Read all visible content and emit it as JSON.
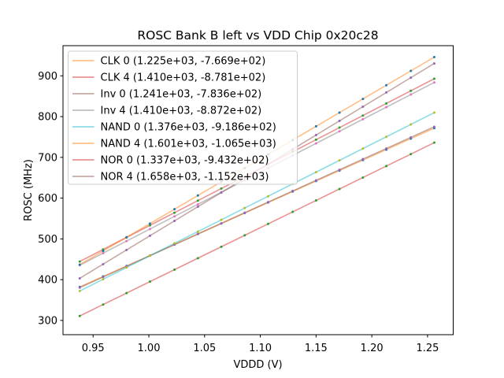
{
  "chart_data": {
    "type": "line",
    "title": "ROSC Bank B left vs VDD Chip 0x20c28",
    "xlabel": "VDDD (V)",
    "ylabel": "ROSC (MHz)",
    "xlim": [
      0.923,
      1.273
    ],
    "ylim": [
      265,
      974
    ],
    "grid": false,
    "x_ticks": {
      "values": [
        0.95,
        1.0,
        1.05,
        1.1,
        1.15,
        1.2,
        1.25
      ],
      "labels": [
        "0.95",
        "1.00",
        "1.05",
        "1.10",
        "1.15",
        "1.20",
        "1.25"
      ]
    },
    "y_ticks": {
      "values": [
        300,
        400,
        500,
        600,
        700,
        800,
        900
      ],
      "labels": [
        "300",
        "400",
        "500",
        "600",
        "700",
        "800",
        "900"
      ]
    },
    "legend": {
      "position": "upper left",
      "border_color": "#cccccc",
      "background": "rgba(255,255,255,0.8)"
    },
    "x": [
      0.938,
      0.959,
      0.98,
      1.001,
      1.023,
      1.044,
      1.065,
      1.086,
      1.107,
      1.129,
      1.15,
      1.171,
      1.192,
      1.213,
      1.235,
      1.256
    ],
    "series": [
      {
        "name": "CLK 0",
        "label": "CLK 0 (1.225e+03, -7.669e+02)",
        "fit_slope": 1225.0,
        "fit_intercept": -766.9,
        "line_color": "#ff7f0e",
        "line_alpha": 0.5,
        "marker_color": "#1f77b4",
        "values": [
          382.2,
          407.9,
          433.6,
          459.3,
          486.3,
          512.0,
          537.7,
          563.5,
          589.2,
          616.1,
          641.9,
          667.6,
          693.3,
          719.0,
          746.0,
          771.7
        ]
      },
      {
        "name": "CLK 4",
        "label": "CLK 4 (1.410e+03, -8.781e+02)",
        "fit_slope": 1410.0,
        "fit_intercept": -878.1,
        "line_color": "#d62728",
        "line_alpha": 0.5,
        "marker_color": "#2ca02c",
        "values": [
          444.5,
          474.1,
          503.7,
          533.3,
          564.3,
          593.9,
          623.6,
          653.2,
          682.8,
          713.8,
          743.4,
          773.0,
          802.6,
          832.2,
          863.3,
          892.9
        ]
      },
      {
        "name": "Inv 0",
        "label": "Inv 0 (1.241e+03, -7.836e+02)",
        "fit_slope": 1241.0,
        "fit_intercept": -783.6,
        "line_color": "#8c564b",
        "line_alpha": 0.5,
        "marker_color": "#9467bd",
        "values": [
          380.5,
          406.5,
          432.6,
          458.6,
          485.9,
          512.0,
          538.1,
          564.1,
          590.2,
          617.5,
          643.6,
          669.6,
          695.7,
          721.7,
          749.0,
          775.1
        ]
      },
      {
        "name": "Inv 4",
        "label": "Inv 4 (1.410e+03, -8.872e+02)",
        "fit_slope": 1410.0,
        "fit_intercept": -887.2,
        "line_color": "#7f7f7f",
        "line_alpha": 0.5,
        "marker_color": "#e377c2",
        "values": [
          435.4,
          465.0,
          494.6,
          524.2,
          555.2,
          584.8,
          614.5,
          644.1,
          673.7,
          704.7,
          734.3,
          763.9,
          793.5,
          823.1,
          854.2,
          883.8
        ]
      },
      {
        "name": "NAND 0",
        "label": "NAND 0 (1.376e+03, -9.186e+02)",
        "fit_slope": 1376.0,
        "fit_intercept": -918.6,
        "line_color": "#17becf",
        "line_alpha": 0.5,
        "marker_color": "#bcbd22",
        "values": [
          372.1,
          401.0,
          429.9,
          458.8,
          489.0,
          517.9,
          546.8,
          575.7,
          604.6,
          634.9,
          663.8,
          692.7,
          721.6,
          750.5,
          780.8,
          809.7
        ]
      },
      {
        "name": "NAND 4",
        "label": "NAND 4 (1.601e+03, -1.065e+03)",
        "fit_slope": 1601.0,
        "fit_intercept": -1065.0,
        "line_color": "#ff7f0e",
        "line_alpha": 0.5,
        "marker_color": "#1f77b4",
        "values": [
          436.7,
          470.4,
          504.0,
          537.6,
          572.8,
          606.4,
          640.1,
          673.7,
          707.3,
          742.5,
          776.2,
          809.8,
          843.4,
          877.0,
          912.2,
          945.9
        ]
      },
      {
        "name": "NOR 0",
        "label": "NOR 0 (1.337e+03, -9.432e+02)",
        "fit_slope": 1337.0,
        "fit_intercept": -943.2,
        "line_color": "#d62728",
        "line_alpha": 0.5,
        "marker_color": "#2ca02c",
        "values": [
          310.9,
          339.0,
          367.1,
          395.1,
          424.6,
          452.6,
          480.7,
          508.8,
          536.9,
          566.3,
          594.4,
          622.4,
          650.5,
          678.6,
          708.0,
          736.1
        ]
      },
      {
        "name": "NOR 4",
        "label": "NOR 4 (1.658e+03, -1.152e+03)",
        "fit_slope": 1658.0,
        "fit_intercept": -1152.0,
        "line_color": "#8c564b",
        "line_alpha": 0.5,
        "marker_color": "#9467bd",
        "values": [
          403.2,
          438.0,
          472.8,
          507.7,
          544.1,
          579.0,
          613.8,
          648.6,
          683.4,
          719.9,
          754.7,
          789.5,
          824.3,
          859.2,
          895.6,
          930.4
        ]
      }
    ]
  }
}
